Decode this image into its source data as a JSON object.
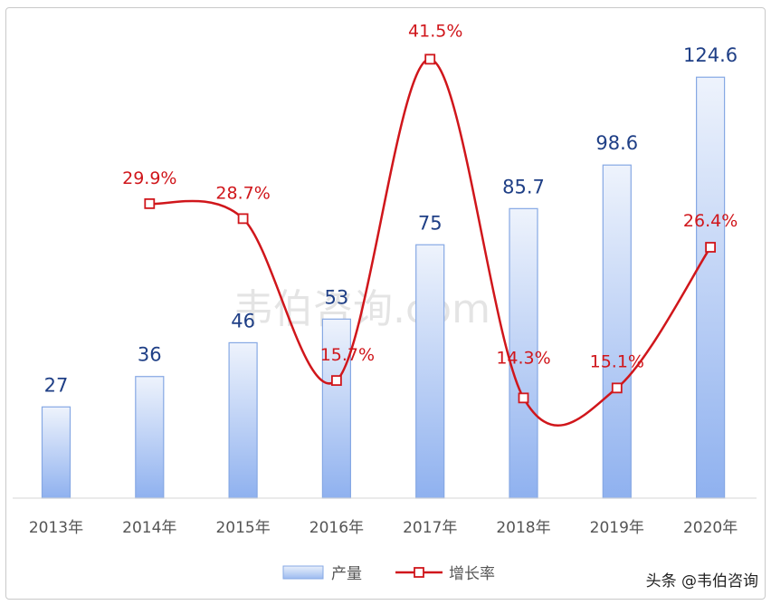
{
  "chart_data": {
    "type": "bar",
    "categories": [
      "2013年",
      "2014年",
      "2015年",
      "2016年",
      "2017年",
      "2018年",
      "2019年",
      "2020年"
    ],
    "series": [
      {
        "name": "产量",
        "type": "bar",
        "values": [
          27,
          36,
          46,
          53,
          75,
          85.7,
          98.6,
          124.6
        ],
        "labels": [
          "27",
          "36",
          "46",
          "53",
          "75",
          "85.7",
          "98.6",
          "124.6"
        ],
        "color": "#9dbbf0"
      },
      {
        "name": "增长率",
        "type": "line",
        "values": [
          null,
          29.9,
          28.7,
          15.7,
          41.5,
          14.3,
          15.1,
          26.4
        ],
        "labels": [
          "",
          "29.9%",
          "28.7%",
          "15.7%",
          "41.5%",
          "14.3%",
          "15.1%",
          "26.4%"
        ],
        "color": "#d0161b"
      }
    ],
    "legend": {
      "position": "bottom-center"
    },
    "grid": false
  },
  "watermark": "韦伯咨询.com",
  "credit": "头条 @韦伯咨询"
}
